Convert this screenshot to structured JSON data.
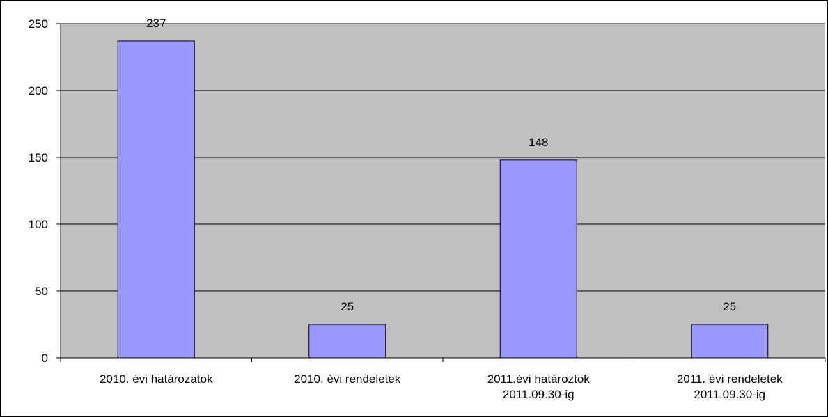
{
  "chart_data": {
    "type": "bar",
    "categories": [
      [
        "2010. évi határozatok"
      ],
      [
        "2010. évi rendeletek"
      ],
      [
        "2011.évi határoztok",
        "2011.09.30-ig"
      ],
      [
        "2011. évi rendeletek",
        "2011.09.30-ig"
      ]
    ],
    "values": [
      237,
      25,
      148,
      25
    ],
    "data_labels": [
      "237",
      "25",
      "148",
      "25"
    ],
    "title": "",
    "xlabel": "",
    "ylabel": "",
    "ylim": [
      0,
      250
    ],
    "yticks": [
      0,
      50,
      100,
      150,
      200,
      250
    ],
    "grid": true,
    "legend": "none",
    "colors": {
      "plot_background": "#c0c0c0",
      "bar_fill": "#9999ff",
      "bar_stroke": "#000000",
      "gridline": "#000000"
    }
  }
}
